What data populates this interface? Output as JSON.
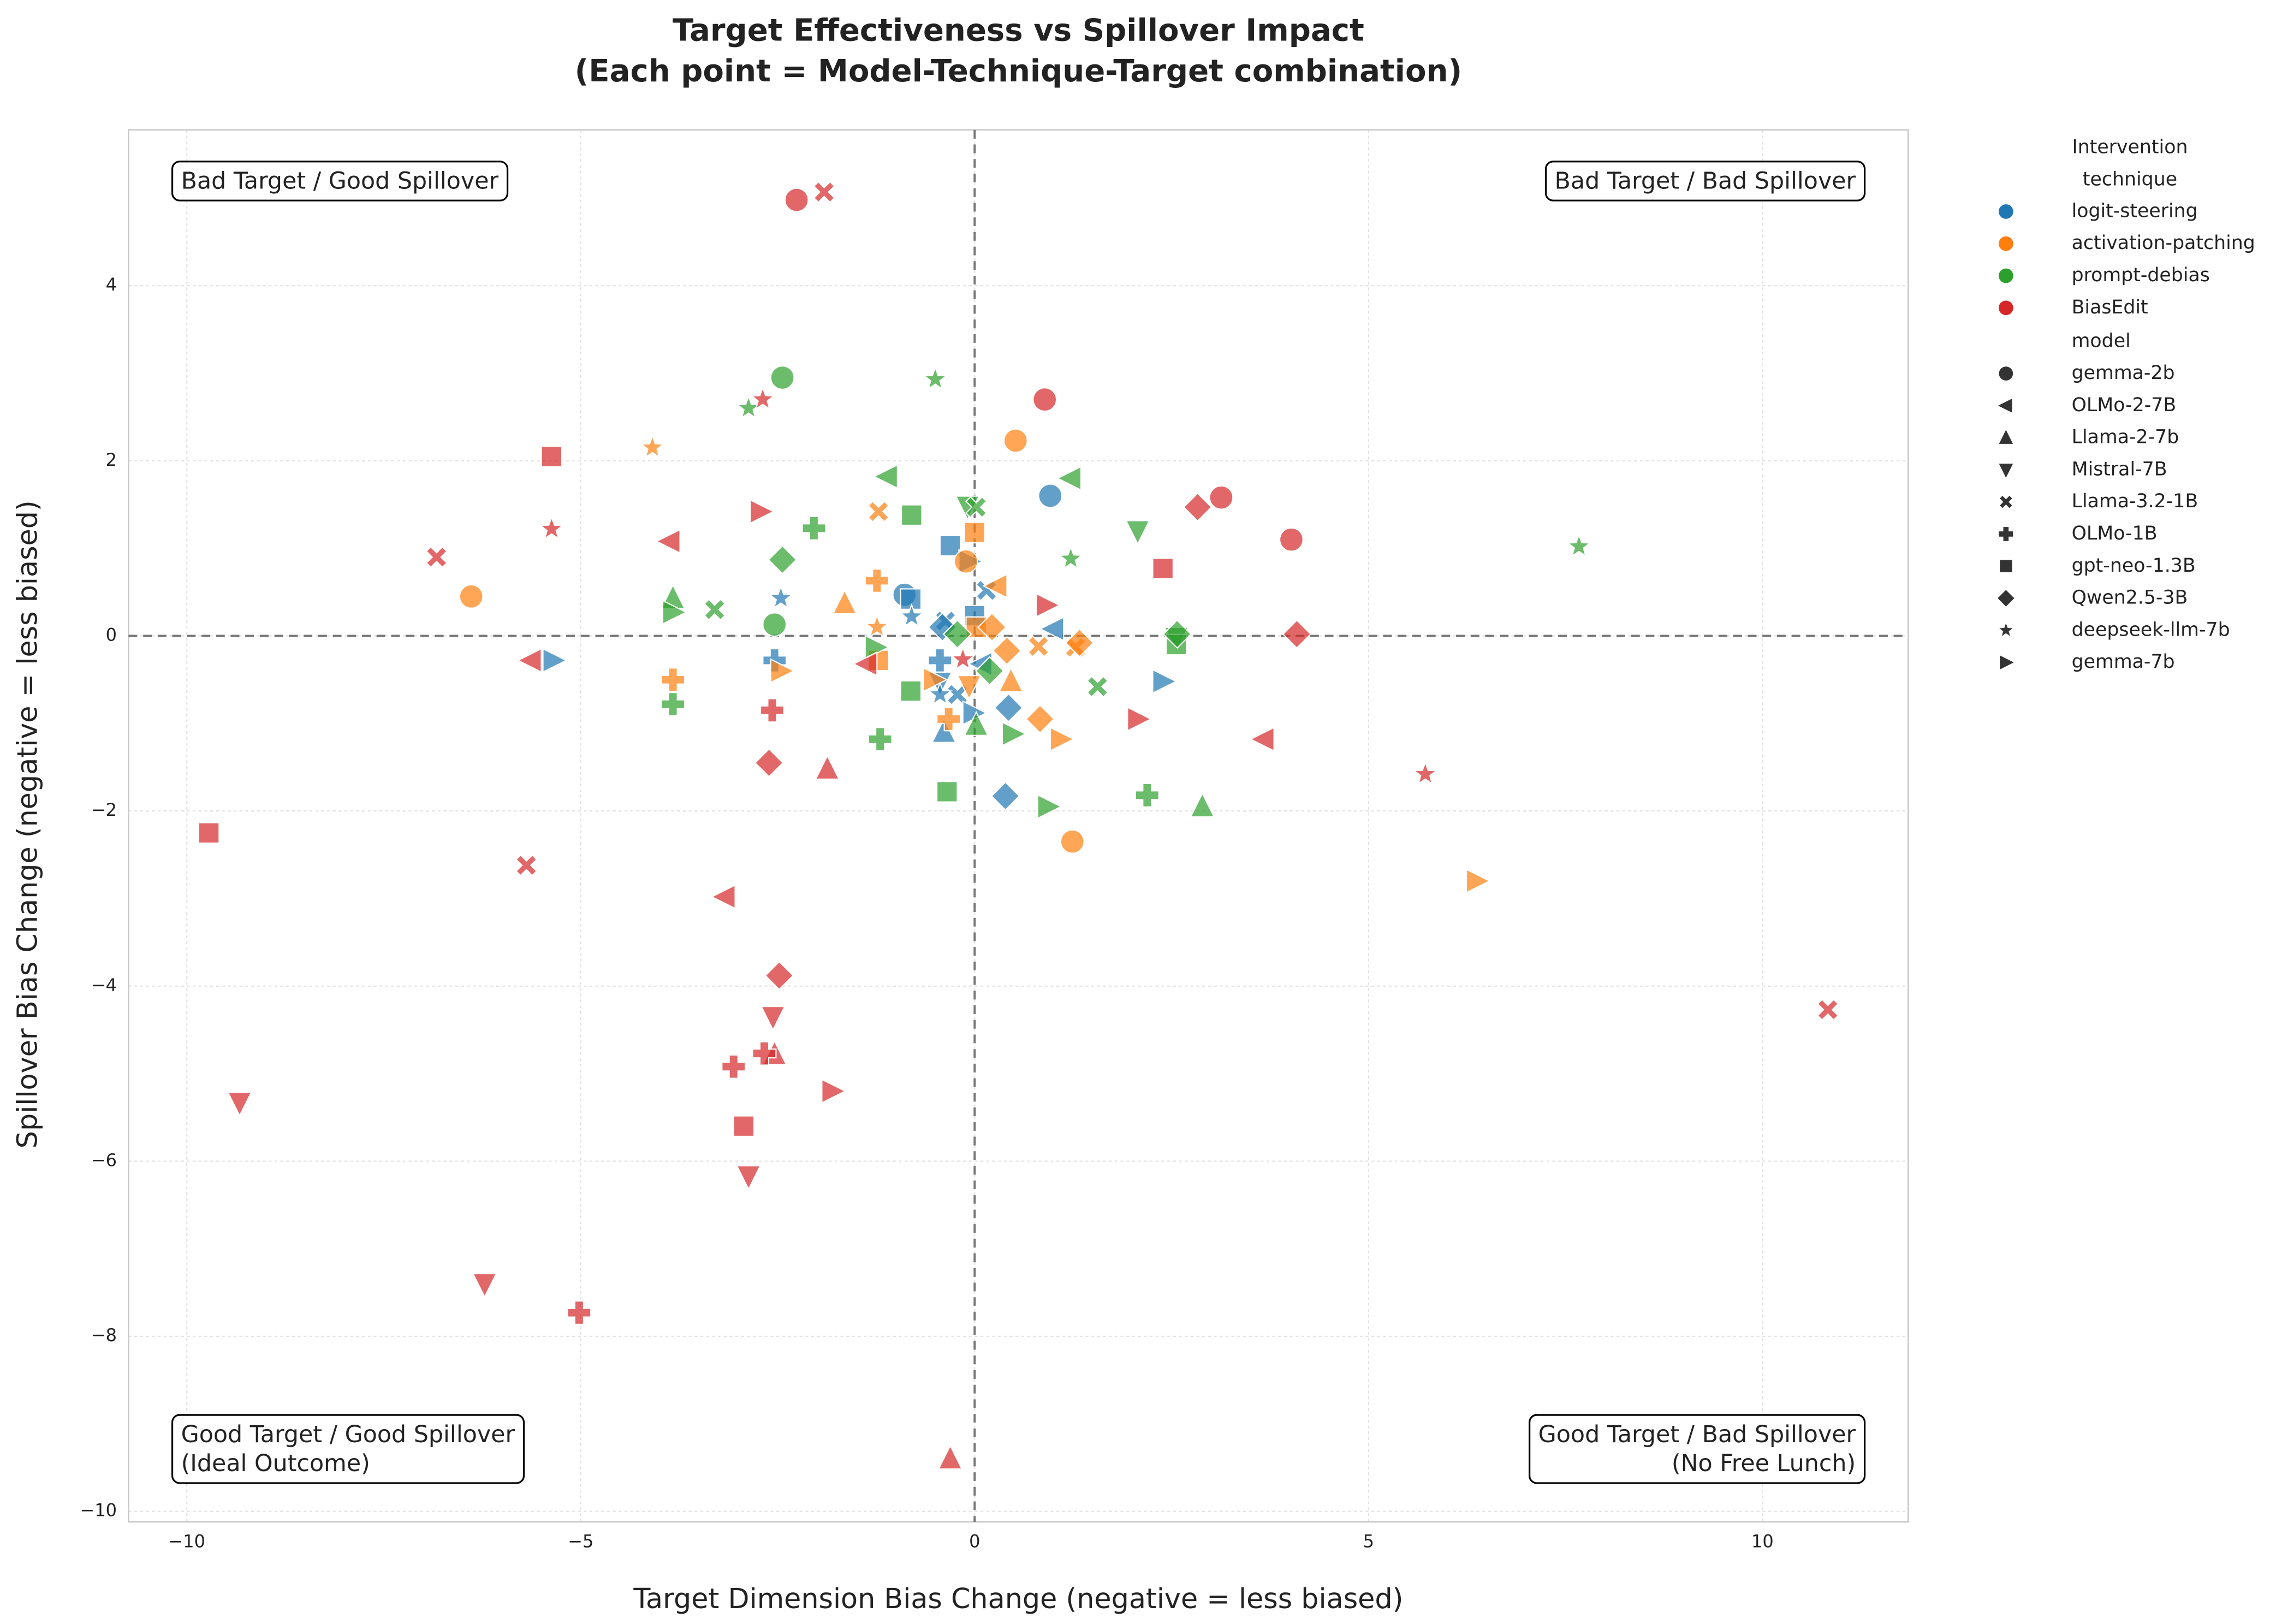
{
  "chart_data": {
    "type": "scatter",
    "title": "Target Effectiveness vs Spillover Impact",
    "subtitle": "(Each point = Model-Technique-Target combination)",
    "x_label": "Target Dimension Bias Change (negative = less biased)",
    "y_label": "Spillover Bias Change (negative = less biased)",
    "xlim": [
      -10.74,
      11.85
    ],
    "ylim": [
      -10.12,
      5.78
    ],
    "xticks": [
      {
        "value": -10,
        "label": "−10"
      },
      {
        "value": -5,
        "label": "−5"
      },
      0,
      5,
      10
    ],
    "yticks": [
      {
        "value": -10,
        "label": "−10"
      },
      {
        "value": -8,
        "label": "−8"
      },
      {
        "value": -6,
        "label": "−6"
      },
      {
        "value": -4,
        "label": "−4"
      },
      {
        "value": -2,
        "label": "−2"
      },
      0,
      2,
      4
    ],
    "grid": true,
    "reference_lines": {
      "x": 0,
      "y": 0
    },
    "legend_loc": "outside right",
    "hue_title": "Intervention technique",
    "marker_title": "model",
    "annotations": [
      {
        "lines": [
          "Bad Target / Good Spillover"
        ],
        "loc": "upper left"
      },
      {
        "lines": [
          "Bad Target / Bad Spillover"
        ],
        "loc": "upper right"
      },
      {
        "lines": [
          "Good Target / Good Spillover",
          "(Ideal Outcome)"
        ],
        "loc": "lower left"
      },
      {
        "lines": [
          "Good Target / Bad Spillover",
          "(No Free Lunch)"
        ],
        "loc": "lower right"
      }
    ],
    "markers": [
      {
        "name": "gemma-2b",
        "shape": "circle"
      },
      {
        "name": "OLMo-2-7B",
        "shape": "triangle-left"
      },
      {
        "name": "Llama-2-7b",
        "shape": "triangle-up"
      },
      {
        "name": "Mistral-7B",
        "shape": "triangle-down"
      },
      {
        "name": "Llama-3.2-1B",
        "shape": "x"
      },
      {
        "name": "OLMo-1B",
        "shape": "plus"
      },
      {
        "name": "gpt-neo-1.3B",
        "shape": "square"
      },
      {
        "name": "Qwen2.5-3B",
        "shape": "diamond"
      },
      {
        "name": "deepseek-llm-7b",
        "shape": "star"
      },
      {
        "name": "gemma-7b",
        "shape": "triangle-right"
      }
    ],
    "series": [
      {
        "name": "logit-steering",
        "color": "#1f77b4",
        "points_by_model": [
          {
            "x": [
              0.96,
              -0.89
            ],
            "y": [
              1.6,
              0.47
            ]
          },
          {
            "x": [
              1.0,
              0.09
            ],
            "y": [
              0.08,
              -0.32
            ]
          },
          {
            "x": [
              -0.39
            ],
            "y": [
              -1.1
            ]
          },
          {
            "x": [
              -0.44
            ],
            "y": [
              -0.53
            ]
          },
          {
            "x": [
              0.15,
              -0.37,
              -0.22
            ],
            "y": [
              0.52,
              0.17,
              -0.67
            ]
          },
          {
            "x": [
              -2.54,
              -0.44
            ],
            "y": [
              -0.28,
              -0.28
            ]
          },
          {
            "x": [
              -0.31,
              -0.81,
              0
            ],
            "y": [
              1.03,
              0.42,
              0.23
            ]
          },
          {
            "x": [
              0.39,
              0.43,
              -0.41
            ],
            "y": [
              -1.83,
              -0.82,
              0.1
            ]
          },
          {
            "x": [
              -2.46,
              -0.8,
              -0.44
            ],
            "y": [
              0.43,
              0.22,
              -0.67
            ]
          },
          {
            "x": [
              -5.35,
              2.39,
              -0.07,
              -0.02
            ],
            "y": [
              -0.28,
              -0.52,
              0.85,
              -0.88
            ]
          }
        ]
      },
      {
        "name": "activation-patching",
        "color": "#ff7f0e",
        "points_by_model": [
          {
            "x": [
              -6.39,
              0.52,
              1.24,
              -0.11
            ],
            "y": [
              0.45,
              2.23,
              -2.35,
              0.85
            ]
          },
          {
            "x": [
              0.28
            ],
            "y": [
              0.57
            ]
          },
          {
            "x": [
              -1.65,
              0.46
            ],
            "y": [
              0.37,
              -0.52
            ]
          },
          {
            "x": [
              -0.07
            ],
            "y": [
              -0.57
            ]
          },
          {
            "x": [
              -1.22,
              0.81,
              1.28
            ],
            "y": [
              1.42,
              -0.12,
              -0.13
            ]
          },
          {
            "x": [
              -3.83,
              -1.24,
              -0.33
            ],
            "y": [
              -0.5,
              0.63,
              -0.95
            ]
          },
          {
            "x": [
              0,
              -1.22,
              0.02
            ],
            "y": [
              1.18,
              -0.28,
              0.1
            ]
          },
          {
            "x": [
              0.83,
              0.41,
              1.33,
              0.22
            ],
            "y": [
              -0.95,
              -0.17,
              -0.08,
              0.1
            ]
          },
          {
            "x": [
              -4.09,
              -1.24
            ],
            "y": [
              2.15,
              0.1
            ]
          },
          {
            "x": [
              6.37,
              1.09,
              -2.46,
              -0.52
            ],
            "y": [
              -2.8,
              -1.18,
              -0.4,
              -0.5
            ]
          }
        ]
      },
      {
        "name": "prompt-debias",
        "color": "#2ca02c",
        "points_by_model": [
          {
            "x": [
              -2.44,
              -2.54
            ],
            "y": [
              2.95,
              0.13
            ]
          },
          {
            "x": [
              -1.11,
              1.22
            ],
            "y": [
              1.82,
              1.8
            ]
          },
          {
            "x": [
              -3.83,
              2.89,
              0.02
            ],
            "y": [
              0.43,
              -1.95,
              -1.02
            ]
          },
          {
            "x": [
              2.07,
              -0.09,
              2.56
            ],
            "y": [
              1.2,
              1.48,
              -0.02
            ]
          },
          {
            "x": [
              -3.3,
              1.56,
              0.02
            ],
            "y": [
              0.3,
              -0.58,
              1.47
            ]
          },
          {
            "x": [
              -2.04,
              -3.83,
              -1.2,
              2.19
            ],
            "y": [
              1.23,
              -0.78,
              -1.18,
              -1.82
            ]
          },
          {
            "x": [
              -0.8,
              -0.81,
              -0.35,
              2.56
            ],
            "y": [
              1.38,
              -0.63,
              -1.78,
              -0.1
            ]
          },
          {
            "x": [
              -2.44,
              2.57,
              -0.22,
              0.19
            ],
            "y": [
              0.87,
              0.02,
              0.02,
              -0.4
            ]
          },
          {
            "x": [
              -0.5,
              -2.87,
              7.67,
              1.22
            ],
            "y": [
              2.93,
              2.6,
              1.02,
              0.88
            ]
          },
          {
            "x": [
              -3.83,
              -1.26,
              0.93,
              0.48
            ],
            "y": [
              0.27,
              -0.13,
              -1.95,
              -1.12
            ]
          }
        ]
      },
      {
        "name": "BiasEdit",
        "color": "#d62728",
        "points_by_model": [
          {
            "x": [
              -2.26,
              0.89,
              3.13,
              4.02
            ],
            "y": [
              4.98,
              2.7,
              1.58,
              1.1
            ]
          },
          {
            "x": [
              -3.87,
              -5.63,
              -3.17,
              3.67,
              -1.37
            ],
            "y": [
              1.08,
              -0.28,
              -2.98,
              -1.18,
              -0.32
            ]
          },
          {
            "x": [
              -1.87,
              -2.54,
              -0.31
            ],
            "y": [
              -1.52,
              -4.78,
              -9.4
            ]
          },
          {
            "x": [
              -9.33,
              -6.22,
              -2.56,
              -2.87
            ],
            "y": [
              -5.33,
              -7.4,
              -4.35,
              -6.17
            ]
          },
          {
            "x": [
              -1.91,
              -6.83,
              -5.69,
              10.83
            ],
            "y": [
              5.07,
              0.9,
              -2.62,
              -4.27
            ]
          },
          {
            "x": [
              -2.57,
              -3.06,
              -2.67,
              -5.02
            ],
            "y": [
              -0.85,
              -4.92,
              -4.77,
              -7.73
            ]
          },
          {
            "x": [
              -5.37,
              -9.72,
              -2.93,
              2.39
            ],
            "y": [
              2.05,
              -2.25,
              -5.6,
              0.77
            ]
          },
          {
            "x": [
              -2.61,
              -2.48,
              2.83,
              4.09
            ],
            "y": [
              -1.45,
              -3.88,
              1.47,
              0.02
            ]
          },
          {
            "x": [
              -2.69,
              -5.37,
              5.72,
              -0.15
            ],
            "y": [
              2.7,
              1.22,
              -1.58,
              -0.27
            ]
          },
          {
            "x": [
              -2.72,
              -1.81,
              2.07,
              0.91
            ],
            "y": [
              1.42,
              -5.2,
              -0.95,
              0.35
            ]
          }
        ]
      }
    ]
  }
}
